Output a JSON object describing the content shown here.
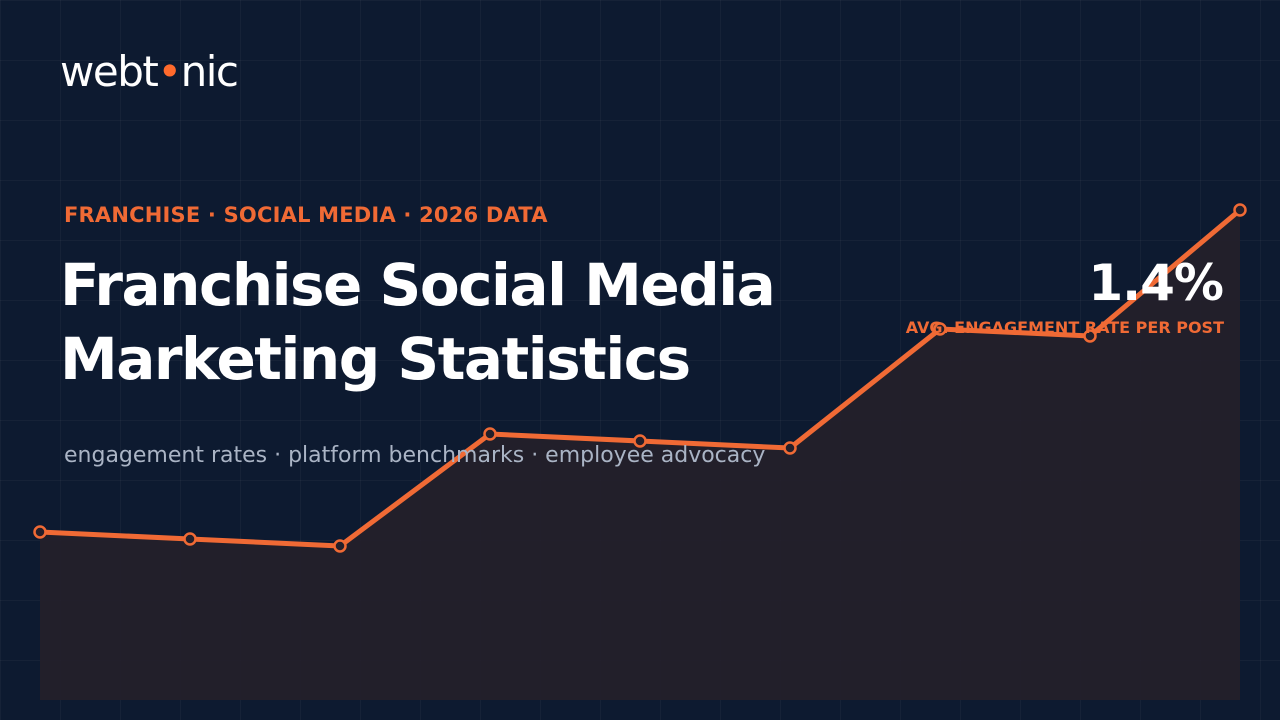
{
  "brand": {
    "logo_left": "webt",
    "logo_dot": "•",
    "logo_right": "nic",
    "accent": "#ff6a2c"
  },
  "eyebrow": "FRANCHISE · SOCIAL MEDIA · 2026 DATA",
  "title": {
    "line1": "Franchise Social Media",
    "line2": "Marketing Statistics"
  },
  "subtitle": "engagement rates · platform benchmarks · employee advocacy",
  "stat": {
    "value": "1.4%",
    "label": "AVG. ENGAGEMENT RATE PER POST"
  },
  "colors": {
    "background": "#0d1a30",
    "line": "#f06a35",
    "area": "#241f2a",
    "text": "#ffffff",
    "muted": "#aab4c5"
  },
  "chart_data": {
    "type": "area",
    "x": [
      1,
      2,
      3,
      4,
      5,
      6,
      7,
      8,
      9
    ],
    "values": [
      0.24,
      0.23,
      0.22,
      0.38,
      0.37,
      0.36,
      0.53,
      0.52,
      0.7
    ],
    "ylim": [
      0,
      1
    ],
    "grid": true,
    "legend": "none"
  }
}
